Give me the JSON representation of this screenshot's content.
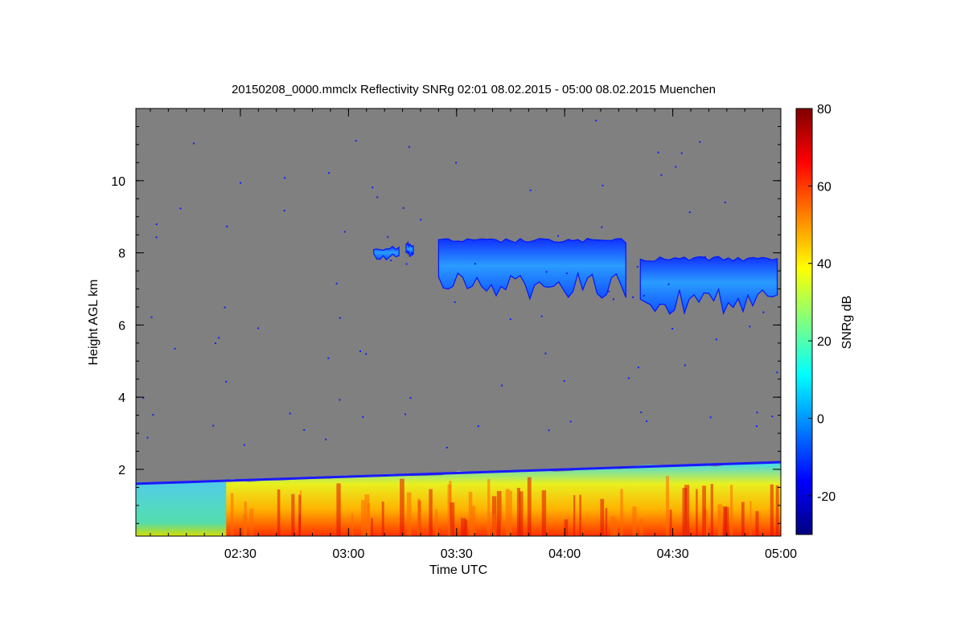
{
  "chart_data": {
    "type": "heatmap",
    "title": "20150208_0000.mmclx Reflectivity SNRg   02:01 08.02.2015 - 05:00 08.02.2015 Muenchen",
    "xlabel": "Time UTC",
    "ylabel": "Height AGL km",
    "xlim": [
      "02:01",
      "05:00"
    ],
    "ylim": [
      0.15,
      12.0
    ],
    "x_ticks": [
      "02:30",
      "03:00",
      "03:30",
      "04:00",
      "04:30",
      "05:00"
    ],
    "y_ticks": [
      2,
      4,
      6,
      8,
      10
    ],
    "background_color": "#808080",
    "colorbar": {
      "label": "SNRg dB",
      "range": [
        -30,
        80
      ],
      "ticks": [
        -20,
        0,
        20,
        40,
        60,
        80
      ],
      "colormap": "jet"
    },
    "features": [
      {
        "name": "boundary layer",
        "time_start": "02:01",
        "time_end": "05:00",
        "top_km_start": 1.6,
        "top_km_end": 2.2,
        "snr_min_db": 0,
        "snr_max_db": 65
      },
      {
        "name": "cloud segment 1",
        "time_start": "03:07",
        "time_end": "03:14",
        "base_km": 7.8,
        "top_km": 8.2,
        "snr_db": 5
      },
      {
        "name": "cloud segment 2",
        "time_start": "03:16",
        "time_end": "03:18",
        "base_km": 7.9,
        "top_km": 8.3,
        "snr_db": 0
      },
      {
        "name": "cloud segment 3",
        "time_start": "03:25",
        "time_end": "04:17",
        "base_km": 6.7,
        "top_km": 8.4,
        "snr_db": 5
      },
      {
        "name": "cloud segment 4",
        "time_start": "04:21",
        "time_end": "04:59",
        "base_km": 6.3,
        "top_km": 7.9,
        "snr_db": 5
      }
    ]
  }
}
